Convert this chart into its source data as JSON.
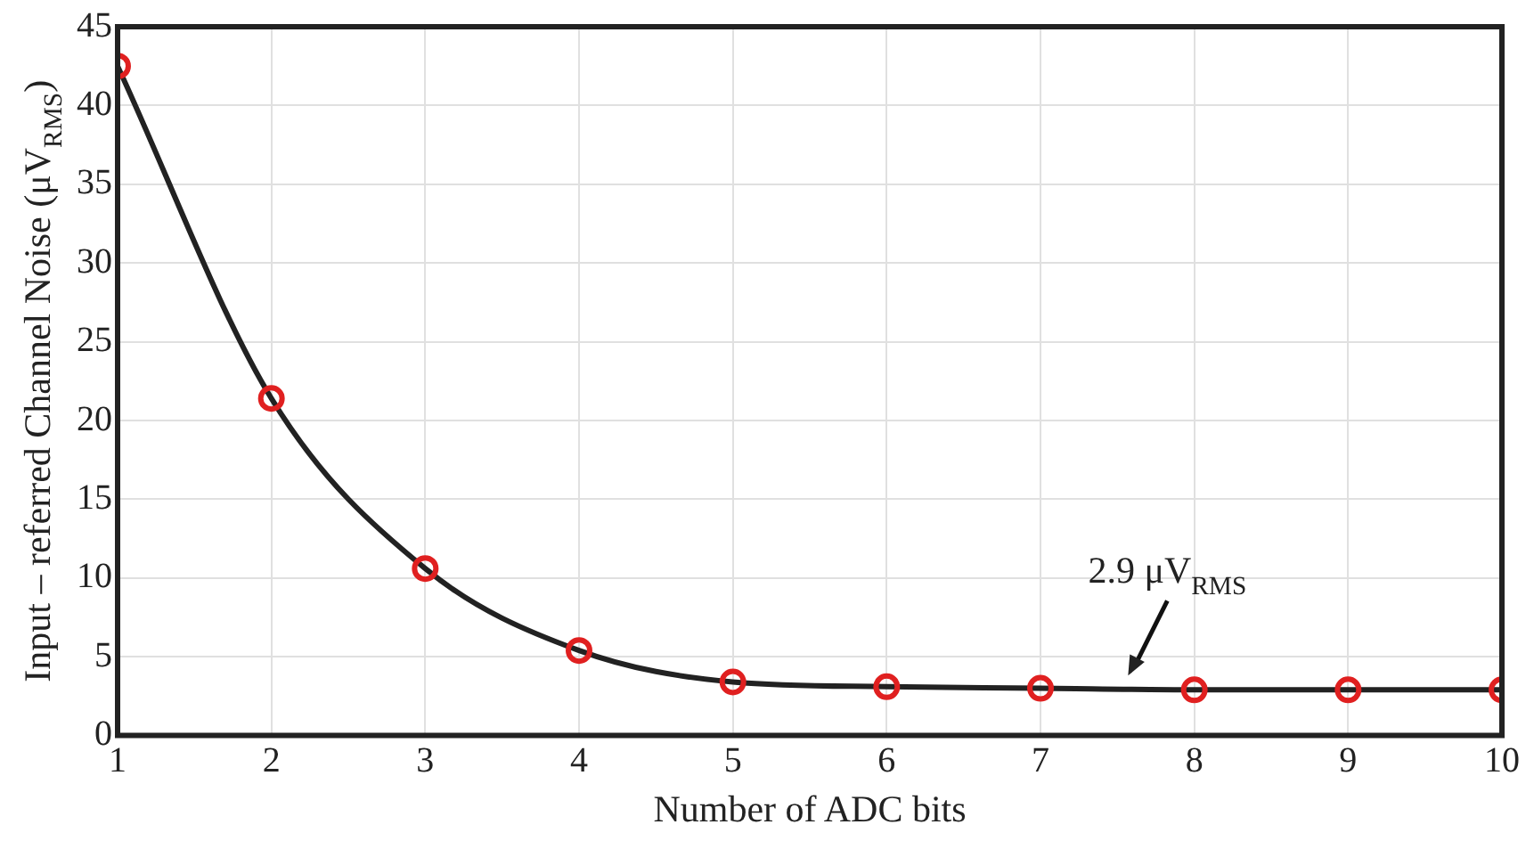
{
  "chart_data": {
    "type": "line",
    "xlabel": "Number of ADC bits",
    "ylabel": "Input – referred Channel Noise (μV$_{RMS}$)",
    "x": [
      1,
      2,
      3,
      4,
      5,
      6,
      7,
      8,
      9,
      10
    ],
    "series": [
      {
        "color": "#222222",
        "colors": [
          "#e02020",
          "#e02020",
          "#e02020",
          "#e02020",
          "#e02020",
          "#e02020",
          "#e02020",
          "#e02020",
          "#e02020",
          "#e02020"
        ],
        "values": [
          42.5,
          21.4,
          10.6,
          5.4,
          3.4,
          3.1,
          3.0,
          2.9,
          2.9,
          2.9
        ]
      }
    ],
    "xlim": [
      1,
      10
    ],
    "xticks": [
      1,
      2,
      3,
      4,
      5,
      6,
      7,
      8,
      9,
      10
    ],
    "ylim": [
      0,
      45
    ],
    "yticks": [
      0,
      5,
      10,
      15,
      20,
      25,
      30,
      35,
      40,
      45
    ],
    "grid": true,
    "legend": false,
    "marker": "circle",
    "line_style": "solid",
    "annotations": [
      {
        "text": "2.9 μV$_{RMS}$",
        "x": 7.5,
        "y": 2.9
      }
    ]
  }
}
